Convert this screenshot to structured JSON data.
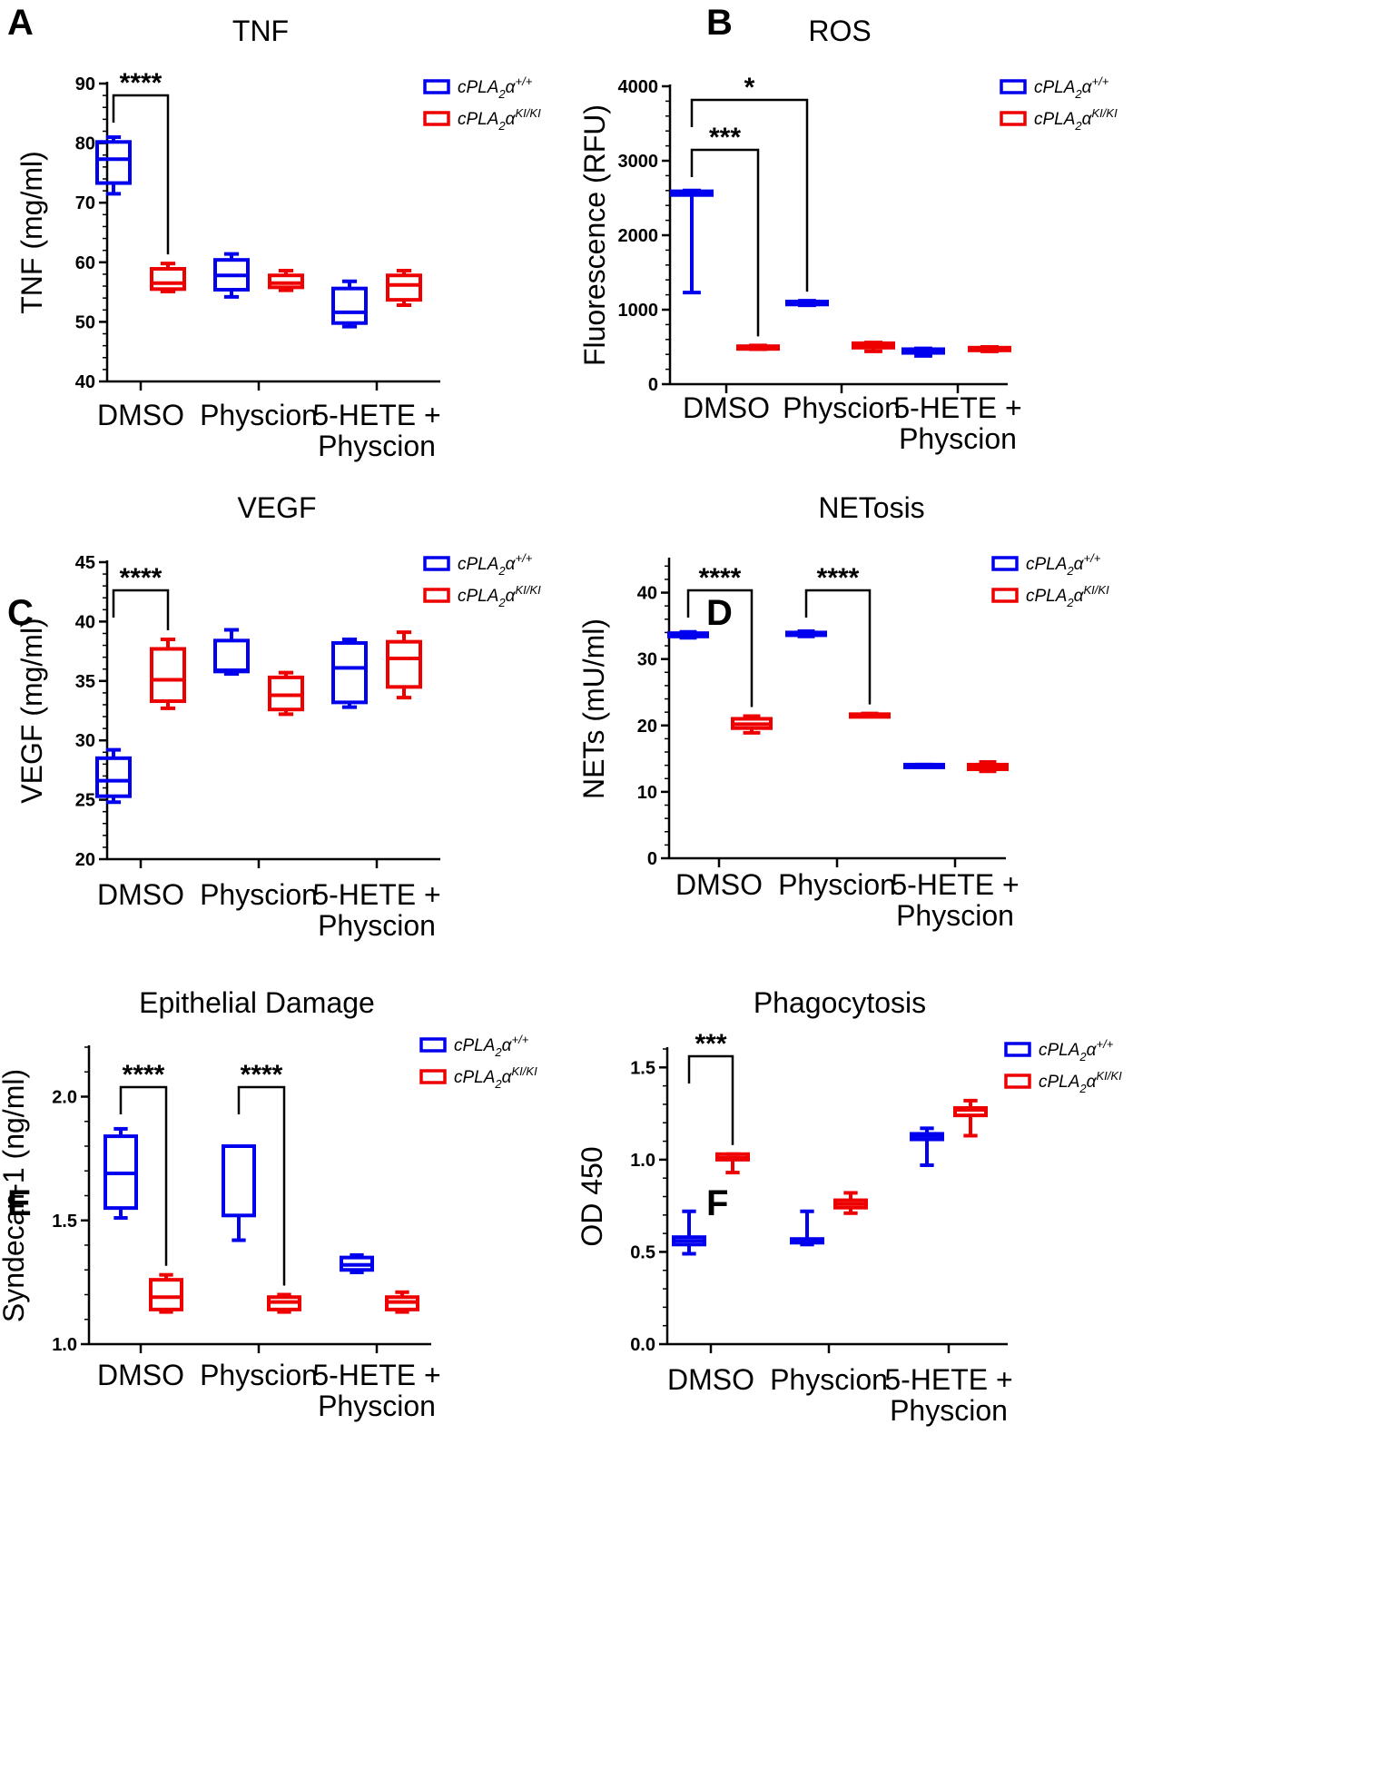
{
  "colors": {
    "wildtype": "#0000ee",
    "knockin": "#ee0000",
    "axis": "#000000"
  },
  "legend": {
    "wt": {
      "base": "cPLA",
      "sub": "2",
      "greek": "α",
      "sup": "+/+"
    },
    "ki": {
      "base": "cPLA",
      "sub": "2",
      "greek": "α",
      "sup": "KI/KI"
    }
  },
  "chart_data": [
    {
      "panel": "A",
      "title": "TNF",
      "type": "box",
      "ylabel": "TNF (mg/ml)",
      "ylim": [
        40,
        90
      ],
      "yticks": [
        40,
        50,
        60,
        70,
        80,
        90
      ],
      "categories": [
        [
          "DMSO"
        ],
        [
          "Physcion"
        ],
        [
          "5-HETE +",
          "Physcion"
        ]
      ],
      "series": [
        {
          "name": "cPLA2α+/+",
          "color": "wildtype",
          "boxes": [
            {
              "min": 71.5,
              "q1": 73.3,
              "median": 77.3,
              "q3": 80.2,
              "max": 81.0
            },
            {
              "min": 54.2,
              "q1": 55.4,
              "median": 57.8,
              "q3": 60.4,
              "max": 61.4
            },
            {
              "min": 49.2,
              "q1": 49.8,
              "median": 51.6,
              "q3": 55.6,
              "max": 56.8
            }
          ]
        },
        {
          "name": "cPLA2αKI/KI",
          "color": "knockin",
          "boxes": [
            {
              "min": 55.1,
              "q1": 55.5,
              "median": 56.5,
              "q3": 58.9,
              "max": 59.8
            },
            {
              "min": 55.3,
              "q1": 55.8,
              "median": 56.5,
              "q3": 57.8,
              "max": 58.6
            },
            {
              "min": 52.8,
              "q1": 53.7,
              "median": 56.2,
              "q3": 57.8,
              "max": 58.6
            }
          ]
        }
      ],
      "significance": [
        {
          "label": "****",
          "from": [
            0,
            0
          ],
          "to": [
            0,
            1
          ]
        }
      ]
    },
    {
      "panel": "B",
      "title": "ROS",
      "type": "box",
      "ylabel": "Fluorescence (RFU)",
      "ylim": [
        0,
        4000
      ],
      "yticks": [
        0,
        1000,
        2000,
        3000,
        4000
      ],
      "categories": [
        [
          "DMSO"
        ],
        [
          "Physcion"
        ],
        [
          "5-HETE +",
          "Physcion"
        ]
      ],
      "series": [
        {
          "name": "cPLA2α+/+",
          "color": "wildtype",
          "boxes": [
            {
              "min": 1230,
              "q1": 2540,
              "median": 2565,
              "q3": 2590,
              "max": 2600
            },
            {
              "min": 1060,
              "q1": 1070,
              "median": 1090,
              "q3": 1110,
              "max": 1120
            },
            {
              "min": 380,
              "q1": 420,
              "median": 450,
              "q3": 470,
              "max": 480
            }
          ]
        },
        {
          "name": "cPLA2αKI/KI",
          "color": "knockin",
          "boxes": [
            {
              "min": 470,
              "q1": 480,
              "median": 500,
              "q3": 510,
              "max": 520
            },
            {
              "min": 440,
              "q1": 490,
              "median": 520,
              "q3": 550,
              "max": 560
            },
            {
              "min": 440,
              "q1": 460,
              "median": 470,
              "q3": 490,
              "max": 500
            }
          ]
        }
      ],
      "significance": [
        {
          "label": "***",
          "from": [
            0,
            0
          ],
          "to": [
            0,
            1
          ]
        },
        {
          "label": "*",
          "from": [
            0,
            0
          ],
          "to": [
            1,
            0
          ]
        }
      ]
    },
    {
      "panel": "C",
      "title": "VEGF",
      "type": "box",
      "ylabel": "VEGF (mg/ml)",
      "ylim": [
        20,
        45
      ],
      "yticks": [
        20,
        25,
        30,
        35,
        40,
        45
      ],
      "categories": [
        [
          "DMSO"
        ],
        [
          "Physcion"
        ],
        [
          "5-HETE +",
          "Physcion"
        ]
      ],
      "series": [
        {
          "name": "cPLA2α+/+",
          "color": "wildtype",
          "boxes": [
            {
              "min": 24.8,
              "q1": 25.3,
              "median": 26.6,
              "q3": 28.5,
              "max": 29.2
            },
            {
              "min": 35.6,
              "q1": 35.8,
              "median": 35.9,
              "q3": 38.4,
              "max": 39.3
            },
            {
              "min": 32.8,
              "q1": 33.2,
              "median": 36.1,
              "q3": 38.2,
              "max": 38.5
            }
          ]
        },
        {
          "name": "cPLA2αKI/KI",
          "color": "knockin",
          "boxes": [
            {
              "min": 32.7,
              "q1": 33.3,
              "median": 35.1,
              "q3": 37.7,
              "max": 38.5
            },
            {
              "min": 32.2,
              "q1": 32.6,
              "median": 33.8,
              "q3": 35.3,
              "max": 35.7
            },
            {
              "min": 33.6,
              "q1": 34.5,
              "median": 36.9,
              "q3": 38.3,
              "max": 39.1
            }
          ]
        }
      ],
      "significance": [
        {
          "label": "****",
          "from": [
            0,
            0
          ],
          "to": [
            0,
            1
          ]
        }
      ]
    },
    {
      "panel": "D",
      "title": "NETosis",
      "type": "box",
      "ylabel": "NETs (mU/ml)",
      "ylim": [
        0,
        45
      ],
      "yticks": [
        0,
        10,
        20,
        30,
        40
      ],
      "categories": [
        [
          "DMSO"
        ],
        [
          "Physcion"
        ],
        [
          "5-HETE +",
          "Physcion"
        ]
      ],
      "series": [
        {
          "name": "cPLA2α+/+",
          "color": "wildtype",
          "boxes": [
            {
              "min": 33.2,
              "q1": 33.4,
              "median": 33.7,
              "q3": 33.9,
              "max": 34.1
            },
            {
              "min": 33.4,
              "q1": 33.6,
              "median": 33.8,
              "q3": 34.0,
              "max": 34.2
            },
            {
              "min": 13.8,
              "q1": 13.9,
              "median": 14.0,
              "q3": 14.1,
              "max": 14.1
            }
          ]
        },
        {
          "name": "cPLA2αKI/KI",
          "color": "knockin",
          "boxes": [
            {
              "min": 18.9,
              "q1": 19.6,
              "median": 20.2,
              "q3": 21.0,
              "max": 21.4
            },
            {
              "min": 21.4,
              "q1": 21.5,
              "median": 21.6,
              "q3": 21.7,
              "max": 21.8
            },
            {
              "min": 13.1,
              "q1": 13.4,
              "median": 13.8,
              "q3": 14.1,
              "max": 14.5
            }
          ]
        }
      ],
      "significance": [
        {
          "label": "****",
          "from": [
            0,
            0
          ],
          "to": [
            0,
            1
          ]
        },
        {
          "label": "****",
          "from": [
            1,
            0
          ],
          "to": [
            1,
            1
          ]
        }
      ]
    },
    {
      "panel": "E",
      "title": "Epithelial Damage",
      "type": "box",
      "ylabel": "Syndecan-1 (ng/ml)",
      "ylim": [
        1.0,
        2.2
      ],
      "yticks": [
        1.0,
        1.5,
        2.0
      ],
      "tickDecimals": 1,
      "categories": [
        [
          "DMSO"
        ],
        [
          "Physcion"
        ],
        [
          "5-HETE +",
          "Physcion"
        ]
      ],
      "series": [
        {
          "name": "cPLA2α+/+",
          "color": "wildtype",
          "boxes": [
            {
              "min": 1.51,
              "q1": 1.55,
              "median": 1.69,
              "q3": 1.84,
              "max": 1.87
            },
            {
              "min": 1.42,
              "q1": 1.52,
              "median": 1.8,
              "q3": 1.8,
              "max": 1.8
            },
            {
              "min": 1.29,
              "q1": 1.3,
              "median": 1.32,
              "q3": 1.35,
              "max": 1.36
            }
          ]
        },
        {
          "name": "cPLA2αKI/KI",
          "color": "knockin",
          "boxes": [
            {
              "min": 1.13,
              "q1": 1.14,
              "median": 1.19,
              "q3": 1.26,
              "max": 1.28
            },
            {
              "min": 1.13,
              "q1": 1.14,
              "median": 1.17,
              "q3": 1.19,
              "max": 1.2
            },
            {
              "min": 1.13,
              "q1": 1.14,
              "median": 1.17,
              "q3": 1.19,
              "max": 1.21
            }
          ]
        }
      ],
      "significance": [
        {
          "label": "****",
          "from": [
            0,
            0
          ],
          "to": [
            0,
            1
          ]
        },
        {
          "label": "****",
          "from": [
            1,
            0
          ],
          "to": [
            1,
            1
          ]
        }
      ]
    },
    {
      "panel": "F",
      "title": "Phagocytosis",
      "type": "box",
      "ylabel": "OD 450",
      "ylim": [
        0.0,
        1.6
      ],
      "yticks": [
        0.0,
        0.5,
        1.0,
        1.5
      ],
      "tickDecimals": 1,
      "categories": [
        [
          "DMSO"
        ],
        [
          "Physcion"
        ],
        [
          "5-HETE +",
          "Physcion"
        ]
      ],
      "series": [
        {
          "name": "cPLA2α+/+",
          "color": "wildtype",
          "boxes": [
            {
              "min": 0.49,
              "q1": 0.54,
              "median": 0.56,
              "q3": 0.58,
              "max": 0.72
            },
            {
              "min": 0.54,
              "q1": 0.55,
              "median": 0.56,
              "q3": 0.57,
              "max": 0.72
            },
            {
              "min": 0.97,
              "q1": 1.11,
              "median": 1.13,
              "q3": 1.14,
              "max": 1.17
            }
          ]
        },
        {
          "name": "cPLA2αKI/KI",
          "color": "knockin",
          "boxes": [
            {
              "min": 0.93,
              "q1": 1.0,
              "median": 1.01,
              "q3": 1.03,
              "max": 1.03
            },
            {
              "min": 0.71,
              "q1": 0.74,
              "median": 0.76,
              "q3": 0.78,
              "max": 0.82
            },
            {
              "min": 1.13,
              "q1": 1.24,
              "median": 1.27,
              "q3": 1.28,
              "max": 1.32
            }
          ]
        }
      ],
      "significance": [
        {
          "label": "***",
          "from": [
            0,
            0
          ],
          "to": [
            0,
            1
          ]
        }
      ]
    }
  ]
}
